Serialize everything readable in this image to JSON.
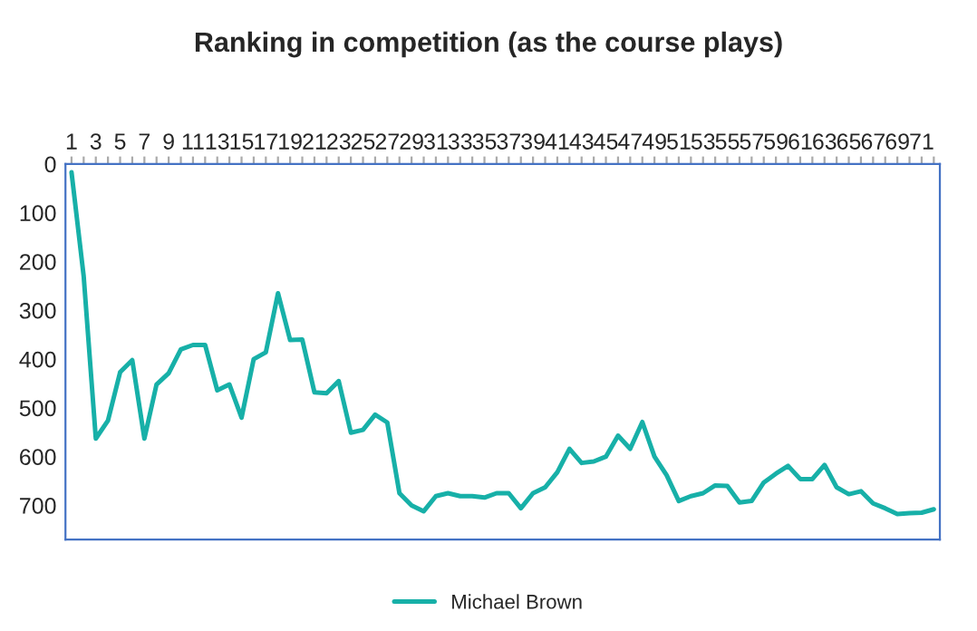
{
  "chart_data": {
    "type": "line",
    "title": "Ranking in competition (as the course plays)",
    "categories": [
      "1",
      null,
      "3",
      null,
      "5",
      null,
      "7",
      null,
      "9",
      null,
      "11",
      null,
      "13",
      null,
      "15",
      null,
      "17",
      null,
      "19",
      null,
      "21",
      null,
      "23",
      null,
      "25",
      null,
      "27",
      null,
      "29",
      null,
      "31",
      null,
      "33",
      null,
      "35",
      null,
      "37",
      null,
      "39",
      null,
      "41",
      null,
      "43",
      null,
      "45",
      null,
      "47",
      null,
      "49",
      null,
      "51",
      null,
      "53",
      null,
      "55",
      null,
      "57",
      null,
      "59",
      null,
      "61",
      null,
      "63",
      null,
      "65",
      null,
      "67",
      null,
      "69",
      null,
      "71",
      null
    ],
    "series": [
      {
        "name": "Michael Brown",
        "color": "#17b0a8",
        "values": [
          17,
          230,
          563,
          526,
          427,
          402,
          563,
          452,
          429,
          380,
          371,
          371,
          464,
          452,
          520,
          400,
          386,
          265,
          361,
          360,
          468,
          470,
          445,
          551,
          545,
          514,
          530,
          675,
          700,
          712,
          681,
          675,
          681,
          681,
          684,
          675,
          675,
          706,
          675,
          663,
          632,
          584,
          613,
          610,
          600,
          557,
          584,
          529,
          600,
          638,
          691,
          681,
          675,
          659,
          660,
          694,
          691,
          653,
          635,
          619,
          646,
          646,
          617,
          663,
          677,
          671,
          696,
          706,
          718,
          716,
          715,
          708
        ]
      }
    ],
    "ylim": [
      770,
      0
    ],
    "yticks": [
      0,
      100,
      200,
      300,
      400,
      500,
      600,
      700
    ],
    "grid": false,
    "legend": "bottom",
    "marker": "none",
    "line_style": "solid"
  }
}
